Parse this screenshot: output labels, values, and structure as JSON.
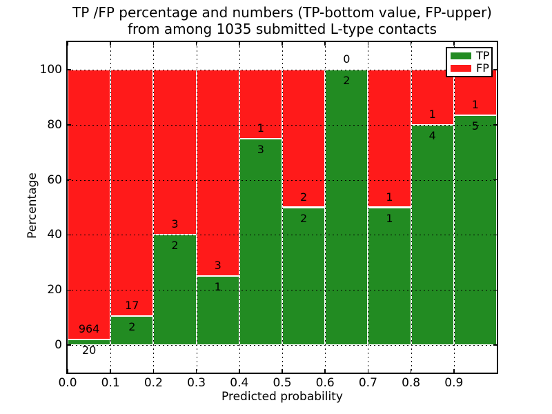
{
  "chart_data": {
    "type": "bar",
    "stacked": true,
    "normalized_to_percent": true,
    "title_line1": "TP /FP percentage and numbers (TP-bottom value, FP-upper)",
    "title_line2": "from among 1035 submitted L-type contacts",
    "xlabel": "Predicted probability",
    "ylabel": "Percentage",
    "xlim": [
      0.0,
      1.0
    ],
    "ylim": [
      -10,
      110
    ],
    "bar_width": 0.1,
    "grid": true,
    "legend_position": "upper right",
    "categories": [
      "0.0-0.1",
      "0.1-0.2",
      "0.2-0.3",
      "0.3-0.4",
      "0.4-0.5",
      "0.5-0.6",
      "0.6-0.7",
      "0.7-0.8",
      "0.8-0.9",
      "0.9-1.0"
    ],
    "series": [
      {
        "name": "TP",
        "color": "#228B22",
        "values": [
          20,
          2,
          2,
          1,
          3,
          2,
          2,
          1,
          4,
          5
        ]
      },
      {
        "name": "FP",
        "color": "#FF1A1A",
        "values": [
          964,
          17,
          3,
          3,
          1,
          2,
          0,
          1,
          1,
          1
        ]
      }
    ],
    "tp_percent_of_column": [
      2.03,
      10.53,
      40.0,
      25.0,
      75.0,
      50.0,
      100.0,
      50.0,
      80.0,
      83.33
    ],
    "bar_edge_color": "#FFFFFF",
    "x_ticks": [
      {
        "value": 0.0,
        "label": "0.0"
      },
      {
        "value": 0.1,
        "label": "0.1"
      },
      {
        "value": 0.2,
        "label": "0.2"
      },
      {
        "value": 0.3,
        "label": "0.3"
      },
      {
        "value": 0.4,
        "label": "0.4"
      },
      {
        "value": 0.5,
        "label": "0.5"
      },
      {
        "value": 0.6,
        "label": "0.6"
      },
      {
        "value": 0.7,
        "label": "0.7"
      },
      {
        "value": 0.8,
        "label": "0.8"
      },
      {
        "value": 0.9,
        "label": "0.9"
      }
    ],
    "y_ticks": [
      {
        "value": 0,
        "label": "0"
      },
      {
        "value": 20,
        "label": "20"
      },
      {
        "value": 40,
        "label": "40"
      },
      {
        "value": 60,
        "label": "60"
      },
      {
        "value": 80,
        "label": "80"
      },
      {
        "value": 100,
        "label": "100"
      }
    ],
    "legend": [
      {
        "label": "TP",
        "color": "#228B22"
      },
      {
        "label": "FP",
        "color": "#FF1A1A"
      }
    ]
  }
}
